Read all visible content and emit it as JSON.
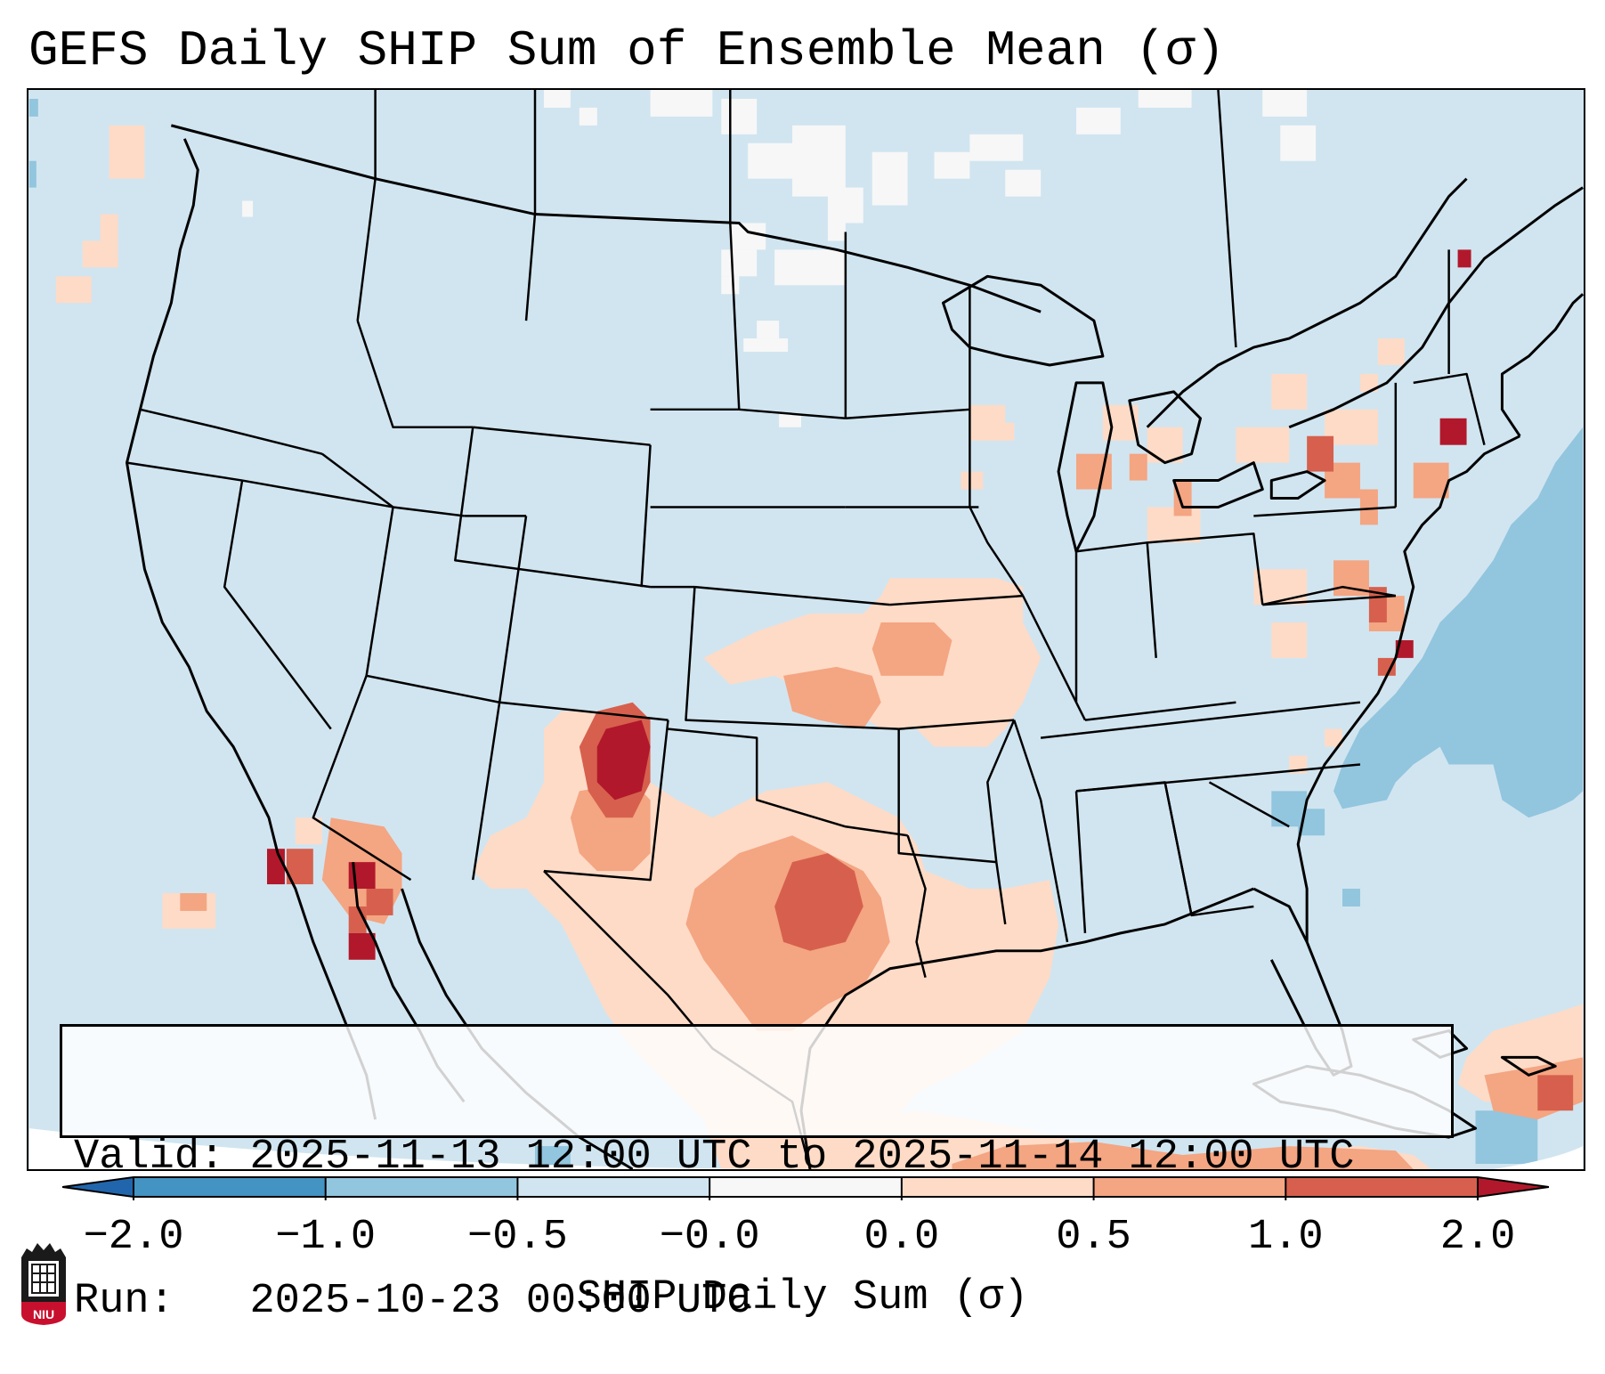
{
  "title": "GEFS Daily SHIP Sum of Ensemble Mean (σ)",
  "info": {
    "valid_label": "Valid:",
    "valid_value": "2025-11-13 12:00 UTC to 2025-11-14 12:00 UTC",
    "run_label": "Run:  ",
    "run_value": "2025-10-23 00:00 UTC"
  },
  "colorbar": {
    "label": "SHIP Daily Sum (σ)",
    "ticks": [
      "−2.0",
      "−1.0",
      "−0.5",
      "−0.0",
      "0.0",
      "0.5",
      "1.0",
      "2.0"
    ],
    "bins": [
      {
        "from": -2.0,
        "to": -1.0,
        "color": "#4393c3"
      },
      {
        "from": -1.0,
        "to": -0.5,
        "color": "#92c5de"
      },
      {
        "from": -0.5,
        "to": -0.0,
        "color": "#d1e5f0"
      },
      {
        "from": -0.0,
        "to": 0.0,
        "color": "#f7f7f7"
      },
      {
        "from": 0.0,
        "to": 0.5,
        "color": "#fddbc7"
      },
      {
        "from": 0.5,
        "to": 1.0,
        "color": "#f4a582"
      },
      {
        "from": 1.0,
        "to": 2.0,
        "color": "#d6604d"
      }
    ],
    "under_color": "#2166ac",
    "over_color": "#b2182b"
  },
  "map": {
    "region": "Contiguous United States",
    "field_colors": {
      "background": "#d1e5f0",
      "negative_strong": "#92c5de",
      "near_zero": "#f7f7f7",
      "weak_positive": "#fddbc7",
      "moderate_positive": "#f4a582",
      "strong_positive": "#d6604d",
      "extreme_positive": "#b2182b"
    }
  },
  "logo": {
    "text": "NIU",
    "color": "#c8102e"
  }
}
